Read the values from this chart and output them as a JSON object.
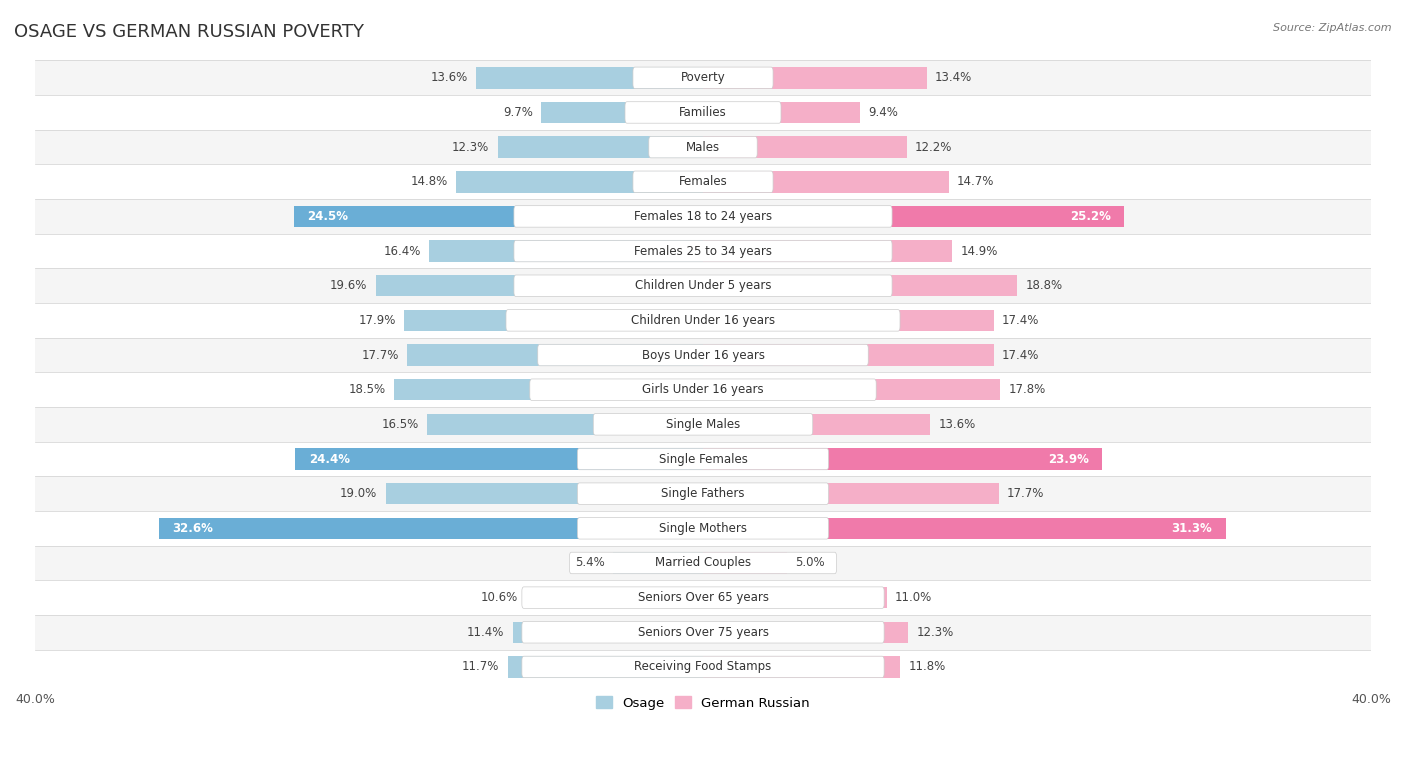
{
  "title": "OSAGE VS GERMAN RUSSIAN POVERTY",
  "source": "Source: ZipAtlas.com",
  "categories": [
    "Poverty",
    "Families",
    "Males",
    "Females",
    "Females 18 to 24 years",
    "Females 25 to 34 years",
    "Children Under 5 years",
    "Children Under 16 years",
    "Boys Under 16 years",
    "Girls Under 16 years",
    "Single Males",
    "Single Females",
    "Single Fathers",
    "Single Mothers",
    "Married Couples",
    "Seniors Over 65 years",
    "Seniors Over 75 years",
    "Receiving Food Stamps"
  ],
  "osage": [
    13.6,
    9.7,
    12.3,
    14.8,
    24.5,
    16.4,
    19.6,
    17.9,
    17.7,
    18.5,
    16.5,
    24.4,
    19.0,
    32.6,
    5.4,
    10.6,
    11.4,
    11.7
  ],
  "german_russian": [
    13.4,
    9.4,
    12.2,
    14.7,
    25.2,
    14.9,
    18.8,
    17.4,
    17.4,
    17.8,
    13.6,
    23.9,
    17.7,
    31.3,
    5.0,
    11.0,
    12.3,
    11.8
  ],
  "osage_color": "#a8cfe0",
  "german_russian_color": "#f5afc8",
  "osage_highlight_color": "#6aaed6",
  "german_russian_highlight_color": "#f07aaa",
  "highlight_rows": [
    4,
    11,
    13
  ],
  "xlim": 40.0,
  "background_color": "#ffffff",
  "row_bg_even": "#f5f5f5",
  "row_bg_odd": "#ffffff",
  "separator_color": "#d0d0d0"
}
